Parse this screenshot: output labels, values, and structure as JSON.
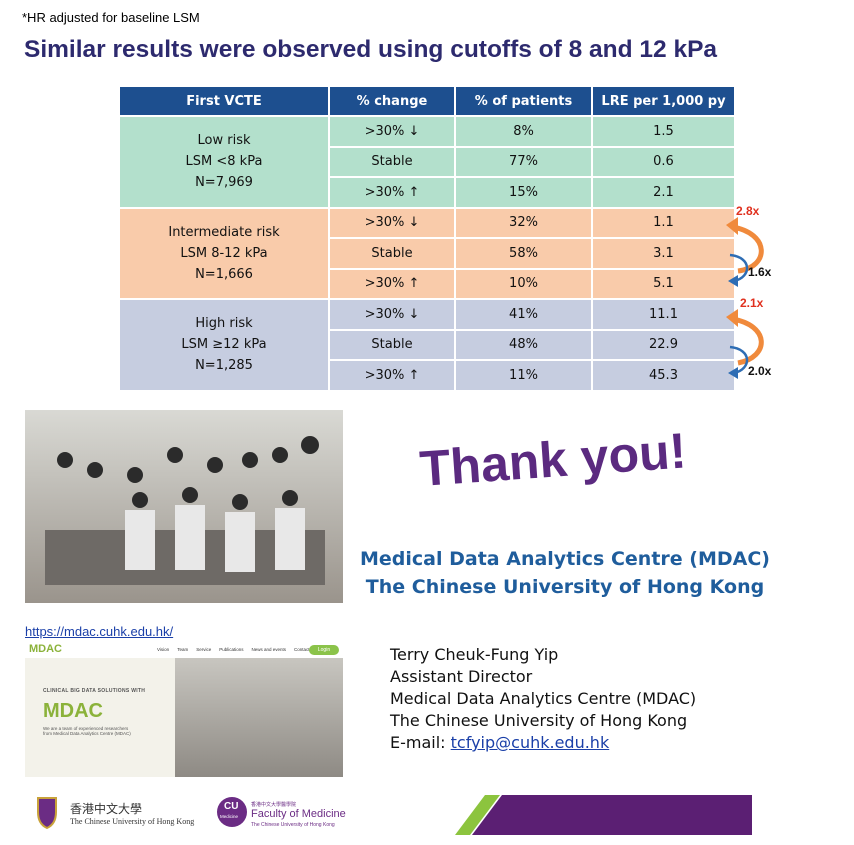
{
  "note": "*HR adjusted for baseline LSM",
  "title": "Similar results were observed using cutoffs of 8 and 12 kPa",
  "table": {
    "headers": [
      "First VCTE",
      "% change",
      "% of patients",
      "LRE per 1,000 py"
    ],
    "groups": [
      {
        "label": [
          "Low risk",
          "LSM <8 kPa",
          "N=7,969"
        ],
        "color": "#b3e0cc",
        "rows": [
          [
            ">30% ↓",
            "8%",
            "1.5"
          ],
          [
            "Stable",
            "77%",
            "0.6"
          ],
          [
            ">30% ↑",
            "15%",
            "2.1"
          ]
        ]
      },
      {
        "label": [
          "Intermediate risk",
          "LSM 8-12 kPa",
          "N=1,666"
        ],
        "color": "#f9cbaa",
        "rows": [
          [
            ">30% ↓",
            "32%",
            "1.1"
          ],
          [
            "Stable",
            "58%",
            "3.1"
          ],
          [
            ">30% ↑",
            "10%",
            "5.1"
          ]
        ]
      },
      {
        "label": [
          "High risk",
          "LSM ≥12 kPa",
          "N=1,285"
        ],
        "color": "#c6cde0",
        "rows": [
          [
            ">30% ↓",
            "41%",
            "11.1"
          ],
          [
            "Stable",
            "48%",
            "22.9"
          ],
          [
            ">30% ↑",
            "11%",
            "45.3"
          ]
        ]
      }
    ]
  },
  "annotations": [
    {
      "label": "2.8x",
      "color": "#e0301e"
    },
    {
      "label": "1.6x",
      "color": "#111111"
    },
    {
      "label": "2.1x",
      "color": "#e0301e"
    },
    {
      "label": "2.0x",
      "color": "#111111"
    }
  ],
  "thank_you": "Thank you!",
  "org": [
    "Medical Data Analytics Centre (MDAC)",
    "The Chinese University of Hong Kong"
  ],
  "website": {
    "url": "https://mdac.cuhk.edu.hk/",
    "logo": "MDAC",
    "nav": [
      "Vision",
      "Team",
      "Service",
      "Publications",
      "News and events",
      "Contact Us"
    ],
    "login": "Login",
    "tagline": "CLINICAL BIG DATA SOLUTIONS WITH",
    "brand": "MDAC",
    "blurb": "We are a team of experienced researchers from Medical Data Analytics Centre (MDAC)"
  },
  "contact": {
    "lines": [
      "Terry Cheuk-Fung Yip",
      "Assistant Director",
      "Medical Data Analytics Centre (MDAC)",
      "The Chinese University of Hong Kong"
    ],
    "email_label": "E-mail:",
    "email": "tcfyip@cuhk.edu.hk"
  },
  "footer": {
    "cuhk_chinese": "香港中文大學",
    "cuhk_english": "The Chinese University of Hong Kong",
    "cu": "CU",
    "medicine": "Medicine",
    "faculty_chinese": "香港中文大學醫學院",
    "faculty": "Faculty of Medicine",
    "faculty_university": "The Chinese University of Hong Kong"
  }
}
